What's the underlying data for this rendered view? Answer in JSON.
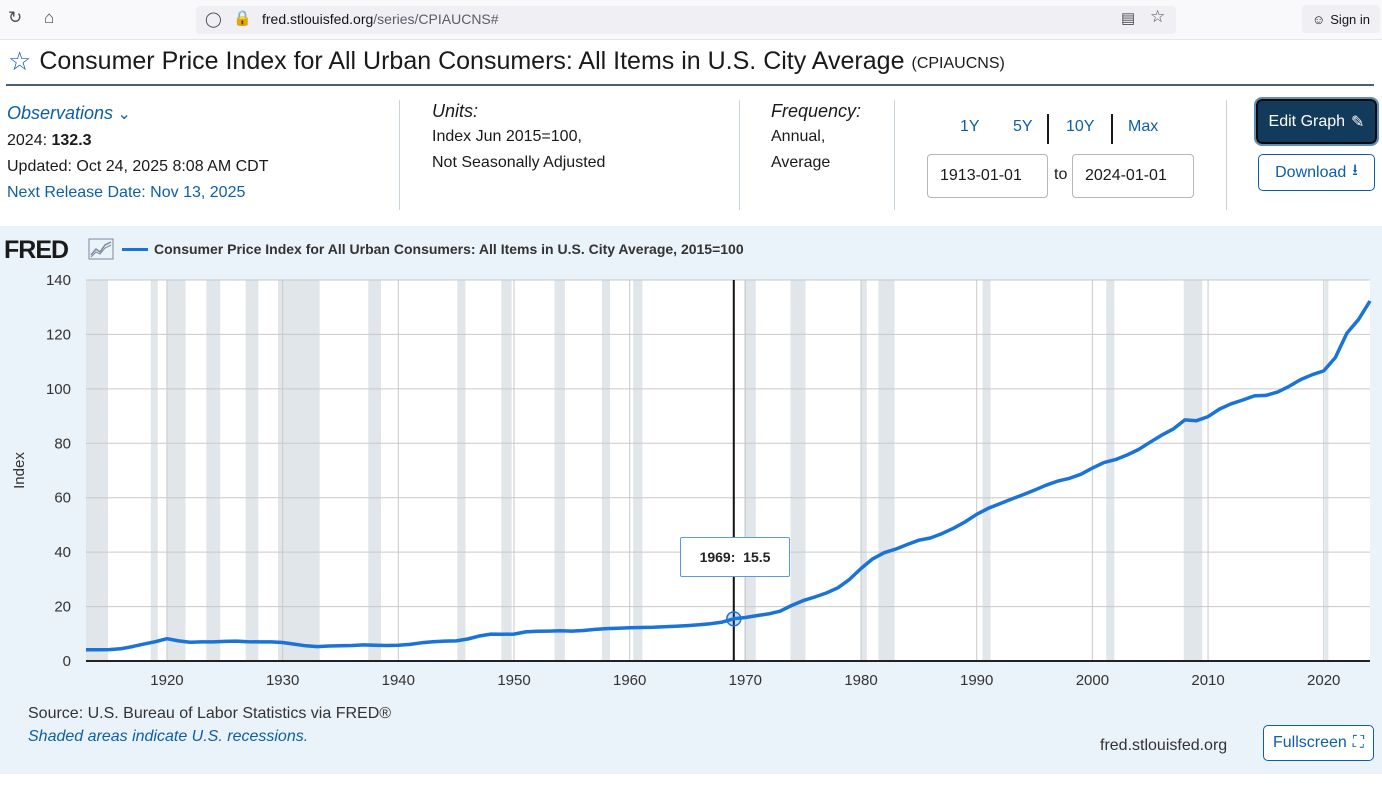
{
  "browser": {
    "reload_icon": "reload-icon",
    "home_icon": "home-icon",
    "url_host": "fred.stlouisfed.org",
    "url_path": "/series/CPIAUCNS#",
    "sign_in": "Sign in"
  },
  "header": {
    "title": "Consumer Price Index for All Urban Consumers: All Items in U.S. City Average",
    "series_id": "(CPIAUCNS)"
  },
  "meta": {
    "observations_label": "Observations",
    "latest_year": "2024:",
    "latest_value": "132.3",
    "updated": "Updated: Oct 24, 2025 8:08 AM CDT",
    "next_release": "Next Release Date: Nov 13, 2025",
    "units_label": "Units:",
    "units_line1": "Index Jun 2015=100,",
    "units_line2": "Not Seasonally Adjusted",
    "frequency_label": "Frequency:",
    "frequency_line1": "Annual,",
    "frequency_line2": "Average"
  },
  "controls": {
    "ranges": [
      "1Y",
      "5Y",
      "10Y",
      "Max"
    ],
    "start_date": "1913-01-01",
    "to": "to",
    "end_date": "2024-01-01",
    "edit_graph": "Edit Graph",
    "download": "Download"
  },
  "chart_data": {
    "type": "line",
    "legend": "Consumer Price Index for All Urban Consumers: All Items in U.S. City Average, 2015=100",
    "ylabel": "Index",
    "ylim": [
      0,
      140
    ],
    "xlim": [
      1913,
      2024
    ],
    "y_ticks": [
      0,
      20,
      40,
      60,
      80,
      100,
      120,
      140
    ],
    "x_ticks": [
      1920,
      1930,
      1940,
      1950,
      1960,
      1970,
      1980,
      1990,
      2000,
      2010,
      2020
    ],
    "series": [
      {
        "x": [
          1913,
          1914,
          1915,
          1916,
          1917,
          1918,
          1919,
          1920,
          1921,
          1922,
          1923,
          1924,
          1925,
          1926,
          1927,
          1928,
          1929,
          1930,
          1931,
          1932,
          1933,
          1934,
          1935,
          1936,
          1937,
          1938,
          1939,
          1940,
          1941,
          1942,
          1943,
          1944,
          1945,
          1946,
          1947,
          1948,
          1949,
          1950,
          1951,
          1952,
          1953,
          1954,
          1955,
          1956,
          1957,
          1958,
          1959,
          1960,
          1961,
          1962,
          1963,
          1964,
          1965,
          1966,
          1967,
          1968,
          1969,
          1970,
          1971,
          1972,
          1973,
          1974,
          1975,
          1976,
          1977,
          1978,
          1979,
          1980,
          1981,
          1982,
          1983,
          1984,
          1985,
          1986,
          1987,
          1988,
          1989,
          1990,
          1991,
          1992,
          1993,
          1994,
          1995,
          1996,
          1997,
          1998,
          1999,
          2000,
          2001,
          2002,
          2003,
          2004,
          2005,
          2006,
          2007,
          2008,
          2009,
          2010,
          2011,
          2012,
          2013,
          2014,
          2015,
          2016,
          2017,
          2018,
          2019,
          2020,
          2021,
          2022,
          2023,
          2024
        ],
        "values": [
          4.1,
          4.1,
          4.2,
          4.5,
          5.3,
          6.2,
          7.1,
          8.2,
          7.4,
          6.9,
          7.0,
          7.0,
          7.2,
          7.3,
          7.1,
          7.0,
          7.0,
          6.8,
          6.2,
          5.6,
          5.3,
          5.5,
          5.6,
          5.7,
          5.9,
          5.8,
          5.7,
          5.8,
          6.1,
          6.7,
          7.1,
          7.3,
          7.4,
          8.1,
          9.2,
          9.9,
          9.8,
          9.9,
          10.7,
          10.9,
          11.0,
          11.1,
          11.0,
          11.2,
          11.6,
          11.9,
          12.0,
          12.2,
          12.3,
          12.4,
          12.6,
          12.8,
          13.0,
          13.3,
          13.7,
          14.3,
          15.5,
          16.0,
          16.7,
          17.3,
          18.3,
          20.4,
          22.2,
          23.5,
          25.0,
          26.9,
          30.0,
          34.0,
          37.5,
          39.8,
          41.1,
          42.8,
          44.4,
          45.2,
          46.8,
          48.8,
          51.1,
          53.9,
          56.1,
          57.8,
          59.5,
          61.1,
          62.8,
          64.6,
          66.1,
          67.1,
          68.6,
          70.9,
          72.9,
          74.0,
          75.7,
          77.7,
          80.4,
          83.0,
          85.3,
          88.6,
          88.3,
          89.8,
          92.6,
          94.5,
          95.9,
          97.4,
          97.6,
          98.8,
          100.9,
          103.4,
          105.2,
          106.6,
          111.5,
          120.5,
          125.4,
          132.3
        ]
      }
    ],
    "recessions": [
      [
        1913.0,
        1914.9
      ],
      [
        1918.6,
        1919.2
      ],
      [
        1920.0,
        1921.6
      ],
      [
        1923.4,
        1924.6
      ],
      [
        1926.8,
        1927.9
      ],
      [
        1929.6,
        1933.2
      ],
      [
        1937.4,
        1938.5
      ],
      [
        1945.1,
        1945.8
      ],
      [
        1948.9,
        1949.8
      ],
      [
        1953.5,
        1954.4
      ],
      [
        1957.6,
        1958.3
      ],
      [
        1960.3,
        1961.1
      ],
      [
        1969.9,
        1970.9
      ],
      [
        1973.9,
        1975.2
      ],
      [
        1980.0,
        1980.5
      ],
      [
        1981.5,
        1982.9
      ],
      [
        1990.5,
        1991.2
      ],
      [
        2001.2,
        2001.9
      ],
      [
        2007.9,
        2009.5
      ],
      [
        2020.1,
        2020.4
      ]
    ],
    "tooltip_year": 1969,
    "tooltip_text": "1969:",
    "tooltip_value": "15.5"
  },
  "footer": {
    "source": "Source: U.S. Bureau of Labor Statistics via FRED®",
    "shaded": "Shaded areas indicate U.S. recessions.",
    "site": "fred.stlouisfed.org",
    "fullscreen": "Fullscreen"
  },
  "colors": {
    "line": "#1a73d8",
    "recession": "#e1e6ea",
    "accent": "#0d5ea8",
    "edit_button": "#123a5a"
  }
}
